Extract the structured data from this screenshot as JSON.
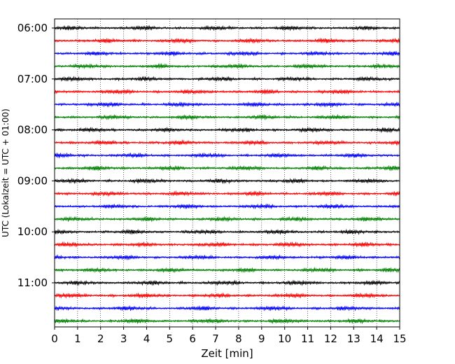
{
  "chart_data": {
    "type": "line",
    "title": "",
    "xlabel": "Zeit  [min]",
    "ylabel": "UTC (Lokalzeit = UTC + 01:00)",
    "xlim": [
      0,
      15
    ],
    "x_ticks": [
      "0",
      "1",
      "2",
      "3",
      "4",
      "5",
      "6",
      "7",
      "8",
      "9",
      "10",
      "11",
      "12",
      "13",
      "14",
      "15"
    ],
    "y_tick_labels": [
      "06:00",
      "07:00",
      "08:00",
      "09:00",
      "10:00",
      "11:00"
    ],
    "grid": {
      "x": true,
      "y": false,
      "style": "dotted"
    },
    "trace_interval_minutes": 15,
    "start_time": "06:00",
    "trace_count": 24,
    "trace_colors": [
      "#000000",
      "#ff0000",
      "#0000ff",
      "#008000"
    ]
  }
}
